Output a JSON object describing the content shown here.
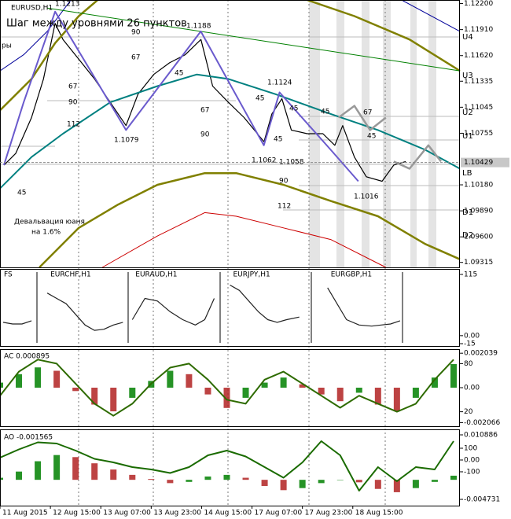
{
  "chart_data": [
    {
      "type": "line",
      "title": "EURUSD,H1",
      "xlim": [
        0,
        146
      ],
      "ylim": [
        1.0926,
        1.1224
      ],
      "yticks": [
        {
          "value": 1.122,
          "label": "1.12200"
        },
        {
          "value": 1.1191,
          "label": "1.11910"
        },
        {
          "value": 1.1162,
          "label": "1.11620"
        },
        1.11335,
        1.11045,
        1.10755,
        {
          "value": 1.1018,
          "label": "1.10180"
        },
        {
          "value": 1.0989,
          "label": "1.09890"
        },
        {
          "value": 1.096,
          "label": "1.09600"
        },
        1.09315
      ],
      "current_price": 1.10429,
      "annotations": [
        "1.1213",
        "Шаг между уровнями 26 пунктов",
        "1.1188",
        "1.1124",
        "1.1079",
        "1.1062",
        "1.1058",
        "1.1016",
        "Девальвация юаня",
        "на 1.6%",
        "U4",
        "U3",
        "U2",
        "U1",
        "LB",
        "D1",
        "D2",
        90,
        67,
        45,
        67,
        90,
        112,
        45,
        45,
        45,
        45,
        67,
        45,
        67,
        90,
        45,
        90,
        112,
        "ры"
      ],
      "series": [
        {
          "color": "#000000",
          "width": 1.2,
          "x": [
            1.3,
            5,
            10,
            13.8,
            17.5,
            20,
            25,
            30,
            35,
            40,
            43.8,
            48.8,
            53.8,
            58.8,
            63.8,
            67.5,
            72.5,
            77.5,
            83.8,
            86.3,
            89.5,
            92.5,
            97.5,
            102.5,
            106.3,
            108.8,
            112.5,
            116.3,
            121.3,
            125,
            128.8
          ],
          "values": [
            1.104,
            1.1053,
            1.1093,
            1.1136,
            1.1198,
            1.118,
            1.1158,
            1.1136,
            1.111,
            1.1084,
            1.1119,
            1.1141,
            1.1154,
            1.1163,
            1.118,
            1.1128,
            1.111,
            1.1093,
            1.1066,
            1.1097,
            1.1114,
            1.1079,
            1.1075,
            1.1075,
            1.1062,
            1.1084,
            1.1049,
            1.1027,
            1.1022,
            1.104,
            1.1044
          ]
        },
        {
          "color": "#008080",
          "width": 2,
          "x": [
            0,
            10,
            20,
            35,
            50,
            62.5,
            72.5,
            87.5,
            105,
            120,
            135,
            146
          ],
          "values": [
            1.1014,
            1.1049,
            1.1075,
            1.111,
            1.1128,
            1.1141,
            1.1136,
            1.1119,
            1.1097,
            1.1079,
            1.1057,
            1.1036
          ]
        },
        {
          "color": "#808000",
          "width": 2.5,
          "x": [
            0,
            10,
            17.5,
            25,
            31,
            60,
            97.5,
            112.5,
            130,
            146
          ],
          "values": [
            1.1101,
            1.1136,
            1.1176,
            1.1206,
            1.1224,
            null,
            1.1224,
            1.1206,
            1.118,
            1.1145
          ]
        },
        {
          "color": "#808000",
          "width": 2.5,
          "x": [
            12.5,
            25,
            37.5,
            50,
            65,
            75,
            90,
            105,
            120,
            135,
            146
          ],
          "values": [
            1.0926,
            1.097,
            1.0996,
            1.1018,
            1.1031,
            1.1031,
            1.1018,
            1.1,
            1.0983,
            1.0952,
            1.0935
          ]
        },
        {
          "color": "#cc0000",
          "width": 1,
          "x": [
            32.5,
            50,
            65,
            75,
            90,
            105,
            122.5
          ],
          "values": [
            1.0926,
            1.0961,
            1.0987,
            1.0983,
            1.097,
            1.0957,
            1.0926
          ]
        },
        {
          "color": "#000099",
          "width": 1,
          "x": [
            0,
            7.5,
            15,
            22.5,
            60,
            127.5,
            146
          ],
          "values": [
            1.1145,
            1.1163,
            1.1189,
            1.1224,
            null,
            1.1224,
            1.1189
          ]
        },
        {
          "color": "#008000",
          "width": 1,
          "x": [
            15,
            146
          ],
          "values": [
            1.1215,
            1.1145
          ]
        },
        {
          "color": "#6a5acd",
          "width": 2,
          "x": [
            1.25,
            7.5,
            17.5,
            40,
            63.75,
            83.75,
            88.75,
            105,
            113.75
          ],
          "values": [
            1.104,
            1.111,
            1.1211,
            1.1079,
            1.1189,
            1.1062,
            1.1121,
            1.1057,
            1.1022
          ]
        },
        {
          "color": "#999999",
          "width": 2.5,
          "x": [
            107.5,
            112.5,
            117.5,
            122.5,
            123.5,
            125,
            130,
            136,
            140
          ],
          "values": [
            1.1093,
            1.1106,
            1.1079,
            1.1093,
            null,
            1.1044,
            1.1036,
            1.1062,
            1.1044
          ]
        }
      ]
    },
    {
      "type": "line",
      "title": "FS",
      "xlim": [
        0,
        146
      ],
      "ylim": [
        -19.4,
        125.3
      ],
      "yticks": [
        115,
        {
          "value": 0,
          "label": "0.00"
        },
        -15
      ],
      "series": [
        {
          "color": "#222222",
          "x": [
            1,
            4,
            7,
            10
          ],
          "values": [
            25,
            22,
            22,
            28
          ]
        },
        {
          "name": "EURCHF,H1",
          "color": "#222222",
          "x": [
            15,
            18,
            21,
            24,
            27,
            30,
            33,
            36,
            39
          ],
          "values": [
            80,
            70,
            60,
            40,
            20,
            10,
            12,
            20,
            25
          ]
        },
        {
          "name": "EURAUD,H1",
          "color": "#222222",
          "x": [
            42,
            46,
            50,
            54,
            58,
            62,
            65,
            68
          ],
          "values": [
            30,
            70,
            65,
            45,
            30,
            20,
            30,
            70
          ]
        },
        {
          "name": "EURJPY,H1",
          "color": "#222222",
          "x": [
            73,
            76,
            79,
            82,
            85,
            88,
            91,
            95
          ],
          "values": [
            95,
            85,
            65,
            45,
            30,
            25,
            30,
            35
          ]
        },
        {
          "name": "EURGBP,H1",
          "color": "#222222",
          "x": [
            104,
            107,
            110,
            114,
            118,
            121,
            124,
            127
          ],
          "values": [
            90,
            60,
            30,
            20,
            18,
            20,
            22,
            28
          ]
        }
      ]
    },
    {
      "type": "bar",
      "title": "AC 0.000895",
      "xlim": [
        0,
        146
      ],
      "ylim": [
        -0.00228,
        0.00228
      ],
      "y2lim": [
        2,
        98
      ],
      "yticks": [
        0.002039,
        {
          "value": 0,
          "label": "0.00"
        },
        -0.002066
      ],
      "y2ticks": [
        80,
        20
      ],
      "up_color": "#008000",
      "down_color": "#b22222",
      "x": [
        0,
        6,
        12,
        18,
        24,
        30,
        36,
        42,
        48,
        54,
        60,
        66,
        72,
        78,
        84,
        90,
        96,
        102,
        108,
        114,
        120,
        126,
        132,
        138,
        144
      ],
      "values": [
        0.0003,
        0.0008,
        0.0012,
        0.001,
        -0.0002,
        -0.001,
        -0.0014,
        -0.0006,
        0.0004,
        0.001,
        0.0008,
        -0.0004,
        -0.0012,
        -0.0006,
        0.0003,
        0.0006,
        0.0002,
        -0.0004,
        -0.0008,
        -0.0003,
        -0.001,
        -0.0014,
        -0.0006,
        0.0006,
        0.0014
      ],
      "series": [
        {
          "color": "#2e6b00",
          "width": 2,
          "axis": "y2",
          "values": [
            40,
            70,
            85,
            80,
            55,
            30,
            15,
            30,
            55,
            75,
            80,
            60,
            35,
            30,
            60,
            70,
            55,
            40,
            25,
            40,
            30,
            20,
            30,
            60,
            85
          ]
        }
      ]
    },
    {
      "type": "bar",
      "title": "AO -0.001565",
      "xlim": [
        0,
        146
      ],
      "ylim": [
        -0.00625,
        0.01222
      ],
      "y2lim": [
        -387,
        260
      ],
      "yticks": [
        0.010886,
        -0.004731
      ],
      "y2ticks": [
        100,
        {
          "value": 0,
          "label": "0.00"
        },
        -100
      ],
      "up_color": "#008000",
      "down_color": "#b22222",
      "x": [
        0,
        6,
        12,
        18,
        24,
        30,
        36,
        42,
        48,
        54,
        60,
        66,
        72,
        78,
        84,
        90,
        96,
        102,
        108,
        114,
        120,
        126,
        132,
        138,
        144
      ],
      "values": [
        0.0005,
        0.002,
        0.0045,
        0.006,
        0.0055,
        0.004,
        0.0025,
        0.0012,
        0.0002,
        -0.0008,
        -0.0005,
        0.0008,
        0.0012,
        0.0005,
        -0.0015,
        -0.0025,
        -0.002,
        -0.0008,
        0.0,
        -0.0006,
        -0.0022,
        -0.003,
        -0.002,
        -0.0005,
        0.001
      ],
      "series": [
        {
          "color": "#1a6b00",
          "width": 2,
          "axis": "y2",
          "values": [
            20,
            90,
            150,
            140,
            80,
            10,
            -20,
            -60,
            -80,
            -110,
            -60,
            40,
            80,
            30,
            -60,
            -150,
            -20,
            160,
            40,
            -260,
            -60,
            -180,
            -60,
            -80,
            160
          ]
        }
      ],
      "xticks": [
        {
          "value": 0,
          "label": "11 Aug 2015"
        },
        {
          "value": 16,
          "label": "12 Aug 15:00"
        },
        {
          "value": 32,
          "label": "13 Aug 07:00"
        },
        {
          "value": 48,
          "label": "13 Aug 23:00"
        },
        {
          "value": 64,
          "label": "14 Aug 15:00"
        },
        {
          "value": 80,
          "label": "17 Aug 07:00"
        },
        {
          "value": 96,
          "label": "17 Aug 23:00"
        },
        {
          "value": 112,
          "label": "18 Aug 15:00"
        }
      ]
    }
  ]
}
